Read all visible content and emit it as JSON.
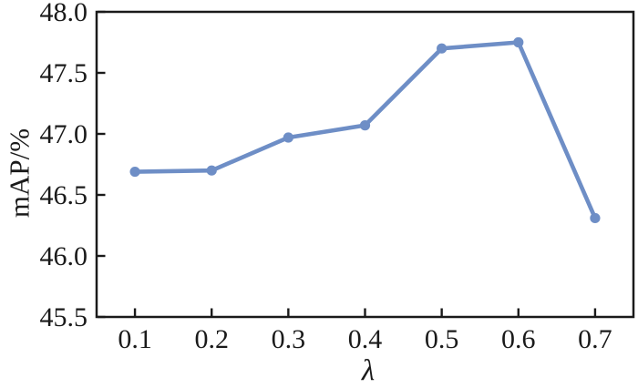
{
  "chart_data": {
    "type": "line",
    "title": "",
    "xlabel": "λ",
    "ylabel": "mAP/%",
    "series_name": "mAP",
    "x": [
      0.1,
      0.2,
      0.3,
      0.4,
      0.5,
      0.6,
      0.7
    ],
    "values": [
      46.69,
      46.7,
      46.97,
      47.07,
      47.7,
      47.75,
      46.31
    ],
    "xlim": [
      0.05,
      0.75
    ],
    "ylim": [
      45.5,
      48.0
    ],
    "xticks": [
      0.1,
      0.2,
      0.3,
      0.4,
      0.5,
      0.6,
      0.7
    ],
    "xtick_labels": [
      "0.1",
      "0.2",
      "0.3",
      "0.4",
      "0.5",
      "0.6",
      "0.7"
    ],
    "yticks": [
      45.5,
      46.0,
      46.5,
      47.0,
      47.5,
      48.0
    ],
    "ytick_labels": [
      "45.5",
      "46.0",
      "46.5",
      "47.0",
      "47.5",
      "48.0"
    ],
    "grid": false,
    "legend_position": "none",
    "tick_direction": "in",
    "marker": "circle",
    "colors": {
      "line": "#6e8ec6",
      "axis": "#1a1a1a",
      "text": "#1a1a1a",
      "background": "#ffffff"
    }
  }
}
